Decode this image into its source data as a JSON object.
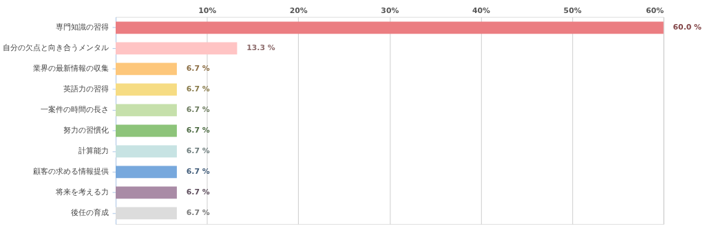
{
  "chart_data": {
    "type": "bar",
    "orientation": "horizontal",
    "categories": [
      "専門知識の習得",
      "自分の欠点と向き合うメンタル",
      "業界の最新情報の収集",
      "英語力の習得",
      "一案件の時間の長さ",
      "努力の習慣化",
      "計算能力",
      "顧客の求める情報提供",
      "将来を考える力",
      "後任の育成"
    ],
    "values": [
      60.0,
      13.3,
      6.7,
      6.7,
      6.7,
      6.7,
      6.7,
      6.7,
      6.7,
      6.7
    ],
    "colors": [
      "#eb7d81",
      "#ffc4c4",
      "#fdc77b",
      "#f6dc83",
      "#c6e0ab",
      "#8dc47a",
      "#c7e3e3",
      "#77a8dd",
      "#a98ba6",
      "#dcdcdc"
    ],
    "value_labels": [
      "60.0 %",
      "13.3 %",
      "6.7 %",
      "6.7 %",
      "6.7 %",
      "6.7 %",
      "6.7 %",
      "6.7 %",
      "6.7 %",
      "6.7 %"
    ],
    "xlim": [
      0,
      60
    ],
    "xticks": [
      {
        "value": 0,
        "label": null
      },
      {
        "value": 10,
        "label": "10%"
      },
      {
        "value": 20,
        "label": "20%"
      },
      {
        "value": 30,
        "label": "30%"
      },
      {
        "value": 40,
        "label": "40%"
      },
      {
        "value": 50,
        "label": "50%"
      },
      {
        "value": 60,
        "label": "60%"
      }
    ],
    "grid": "x",
    "legend": false
  }
}
